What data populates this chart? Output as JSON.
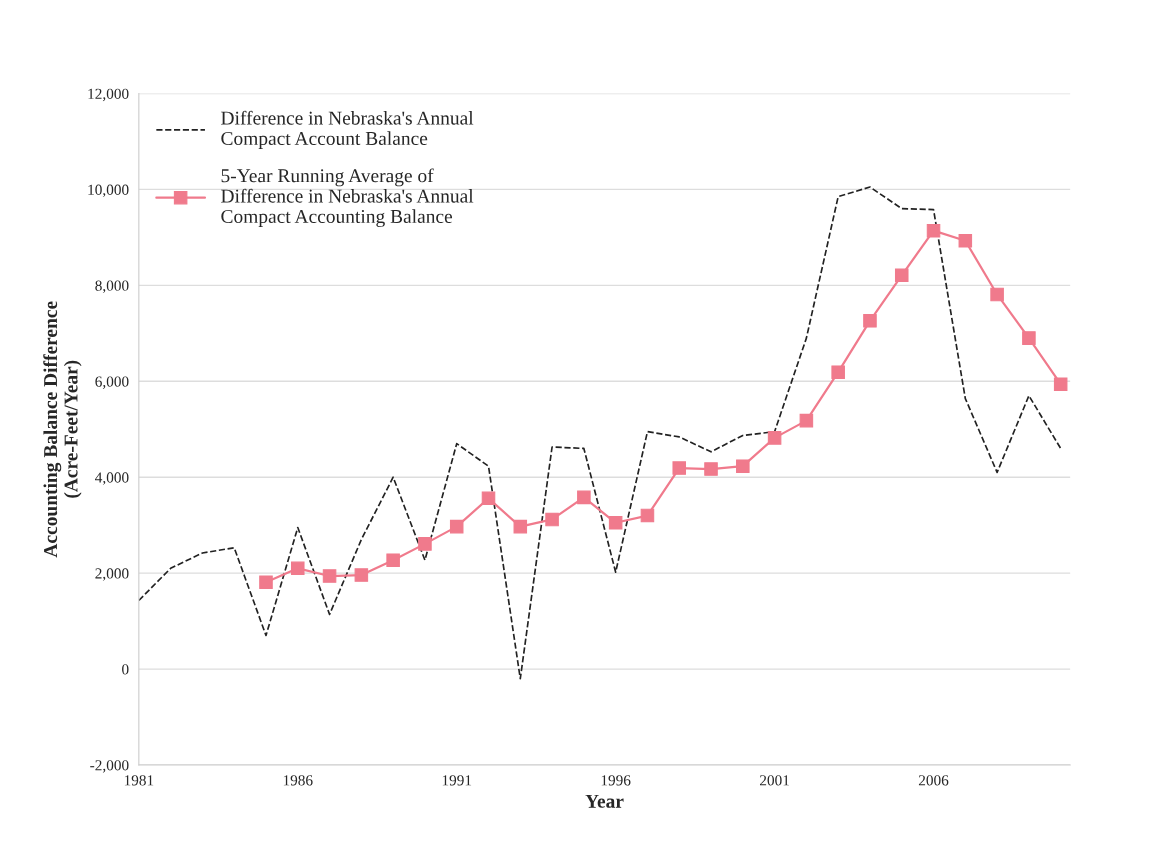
{
  "chart_data": {
    "type": "line",
    "xlabel": "Year",
    "ylabel": "Accounting Balance Difference\n(Acre-Feet/Year)",
    "xlim": [
      1981,
      2010.3
    ],
    "xticks": [
      1981,
      1986,
      1991,
      1996,
      2001,
      2006
    ],
    "ylim": [
      -2000,
      12000
    ],
    "yticks": [
      {
        "value": -2000,
        "label": "-2,000"
      },
      0,
      {
        "value": 2000,
        "label": "2,000"
      },
      {
        "value": 4000,
        "label": "4,000"
      },
      {
        "value": 6000,
        "label": "6,000"
      },
      {
        "value": 8000,
        "label": "8,000"
      },
      {
        "value": 10000,
        "label": "10,000"
      },
      {
        "value": 12000,
        "label": "12,000"
      }
    ],
    "grid": "y",
    "legend": "top left",
    "series": [
      {
        "name": "Difference in Nebraska's Annual\nCompact Account Balance",
        "color": "#222222",
        "line_style": "dashed",
        "marker": "none",
        "x": [
          1981,
          1982,
          1983,
          1984,
          1985,
          1986,
          1987,
          1988,
          1989,
          1990,
          1991,
          1992,
          1993,
          1994,
          1995,
          1996,
          1997,
          1998,
          1999,
          2000,
          2001,
          2002,
          2003,
          2004,
          2005,
          2006,
          2007,
          2008,
          2009,
          2010
        ],
        "values": [
          1430,
          2100,
          2420,
          2530,
          700,
          2950,
          1140,
          2700,
          4000,
          2270,
          4700,
          4230,
          -200,
          4630,
          4600,
          2020,
          4950,
          4840,
          4530,
          4870,
          4950,
          6900,
          9850,
          10050,
          9600,
          9580,
          5640,
          4100,
          5700,
          4600
        ]
      },
      {
        "name": "5-Year Running Average of\nDifference in Nebraska's Annual\nCompact Accounting Balance",
        "color": "#f07a8c",
        "line_style": "solid",
        "marker": "square",
        "x": [
          1985,
          1986,
          1987,
          1988,
          1989,
          1990,
          1991,
          1992,
          1993,
          1994,
          1995,
          1996,
          1997,
          1998,
          1999,
          2000,
          2001,
          2002,
          2003,
          2004,
          2005,
          2006,
          2007,
          2008,
          2009,
          2010
        ],
        "values": [
          1810,
          2100,
          1940,
          1960,
          2270,
          2610,
          2970,
          3560,
          2970,
          3120,
          3580,
          3050,
          3200,
          4190,
          4170,
          4230,
          4820,
          5180,
          6190,
          7260,
          8210,
          9140,
          8930,
          7810,
          6900,
          5940
        ]
      }
    ]
  }
}
